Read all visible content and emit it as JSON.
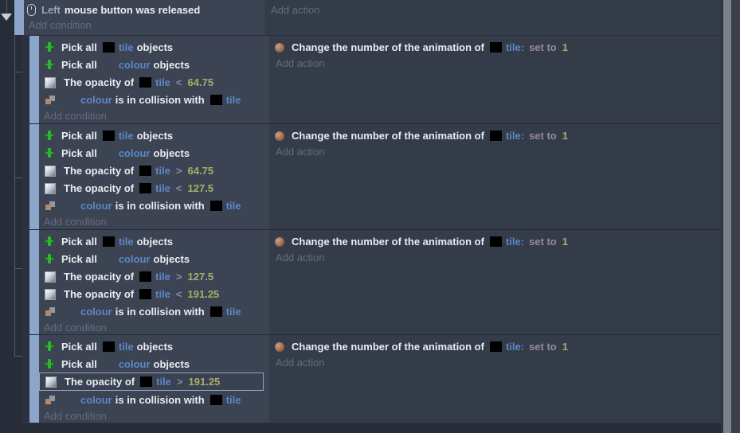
{
  "colors": {
    "drag_bar": "#8ba6c9",
    "object_name": "#5b87c9",
    "value": "#a6af6c",
    "operator": "#8290a5",
    "set_to": "#97889e",
    "parameter": "#92a8c0",
    "add_link": "#646d7e",
    "conditions_bg": "#3c4352",
    "actions_bg": "#343b49"
  },
  "icons": {
    "top_condition": "mouse-icon",
    "pick": "pick-all-icon",
    "opacity": "opacity-icon",
    "collision": "collision-icon",
    "action": "animation-icon"
  },
  "top_event": {
    "param": "Left",
    "text": "mouse button was released",
    "add_condition": "Add condition",
    "add_action": "Add action"
  },
  "events": [
    {
      "conditions": [
        {
          "type": "pick",
          "pre": "Pick all",
          "obj": "tile",
          "post": "objects",
          "thumb": true
        },
        {
          "type": "pick",
          "pre": "Pick all",
          "obj": "colour",
          "post": "objects",
          "thumb": false
        },
        {
          "type": "opacity",
          "pre": "The opacity of",
          "obj": "tile",
          "op": "<",
          "value": "64.75"
        },
        {
          "type": "collision",
          "obj1": "colour",
          "mid": "is in collision with",
          "obj2": "tile"
        }
      ],
      "action": {
        "pre": "Change the number of the animation of",
        "obj": "tile:",
        "set_to": "set to",
        "value": "1"
      },
      "add_condition": "Add condition",
      "add_action": "Add action"
    },
    {
      "conditions": [
        {
          "type": "pick",
          "pre": "Pick all",
          "obj": "tile",
          "post": "objects",
          "thumb": true
        },
        {
          "type": "pick",
          "pre": "Pick all",
          "obj": "colour",
          "post": "objects",
          "thumb": false
        },
        {
          "type": "opacity",
          "pre": "The opacity of",
          "obj": "tile",
          "op": ">",
          "value": "64.75"
        },
        {
          "type": "opacity",
          "pre": "The opacity of",
          "obj": "tile",
          "op": "<",
          "value": "127.5"
        },
        {
          "type": "collision",
          "obj1": "colour",
          "mid": "is in collision with",
          "obj2": "tile"
        }
      ],
      "action": {
        "pre": "Change the number of the animation of",
        "obj": "tile:",
        "set_to": "set to",
        "value": "1"
      },
      "add_condition": "Add condition",
      "add_action": "Add action"
    },
    {
      "conditions": [
        {
          "type": "pick",
          "pre": "Pick all",
          "obj": "tile",
          "post": "objects",
          "thumb": true
        },
        {
          "type": "pick",
          "pre": "Pick all",
          "obj": "colour",
          "post": "objects",
          "thumb": false
        },
        {
          "type": "opacity",
          "pre": "The opacity of",
          "obj": "tile",
          "op": ">",
          "value": "127.5"
        },
        {
          "type": "opacity",
          "pre": "The opacity of",
          "obj": "tile",
          "op": "<",
          "value": "191.25"
        },
        {
          "type": "collision",
          "obj1": "colour",
          "mid": "is in collision with",
          "obj2": "tile"
        }
      ],
      "action": {
        "pre": "Change the number of the animation of",
        "obj": "tile:",
        "set_to": "set to",
        "value": "1"
      },
      "add_condition": "Add condition",
      "add_action": "Add action"
    },
    {
      "conditions": [
        {
          "type": "pick",
          "pre": "Pick all",
          "obj": "tile",
          "post": "objects",
          "thumb": true
        },
        {
          "type": "pick",
          "pre": "Pick all",
          "obj": "colour",
          "post": "objects",
          "thumb": false
        },
        {
          "type": "opacity",
          "pre": "The opacity of",
          "obj": "tile",
          "op": ">",
          "value": "191.25",
          "selected": true
        },
        {
          "type": "collision",
          "obj1": "colour",
          "mid": "is in collision with",
          "obj2": "tile"
        }
      ],
      "action": {
        "pre": "Change the number of the animation of",
        "obj": "tile:",
        "set_to": "set to",
        "value": "1"
      },
      "add_condition": "Add condition",
      "add_action": "Add action"
    }
  ]
}
